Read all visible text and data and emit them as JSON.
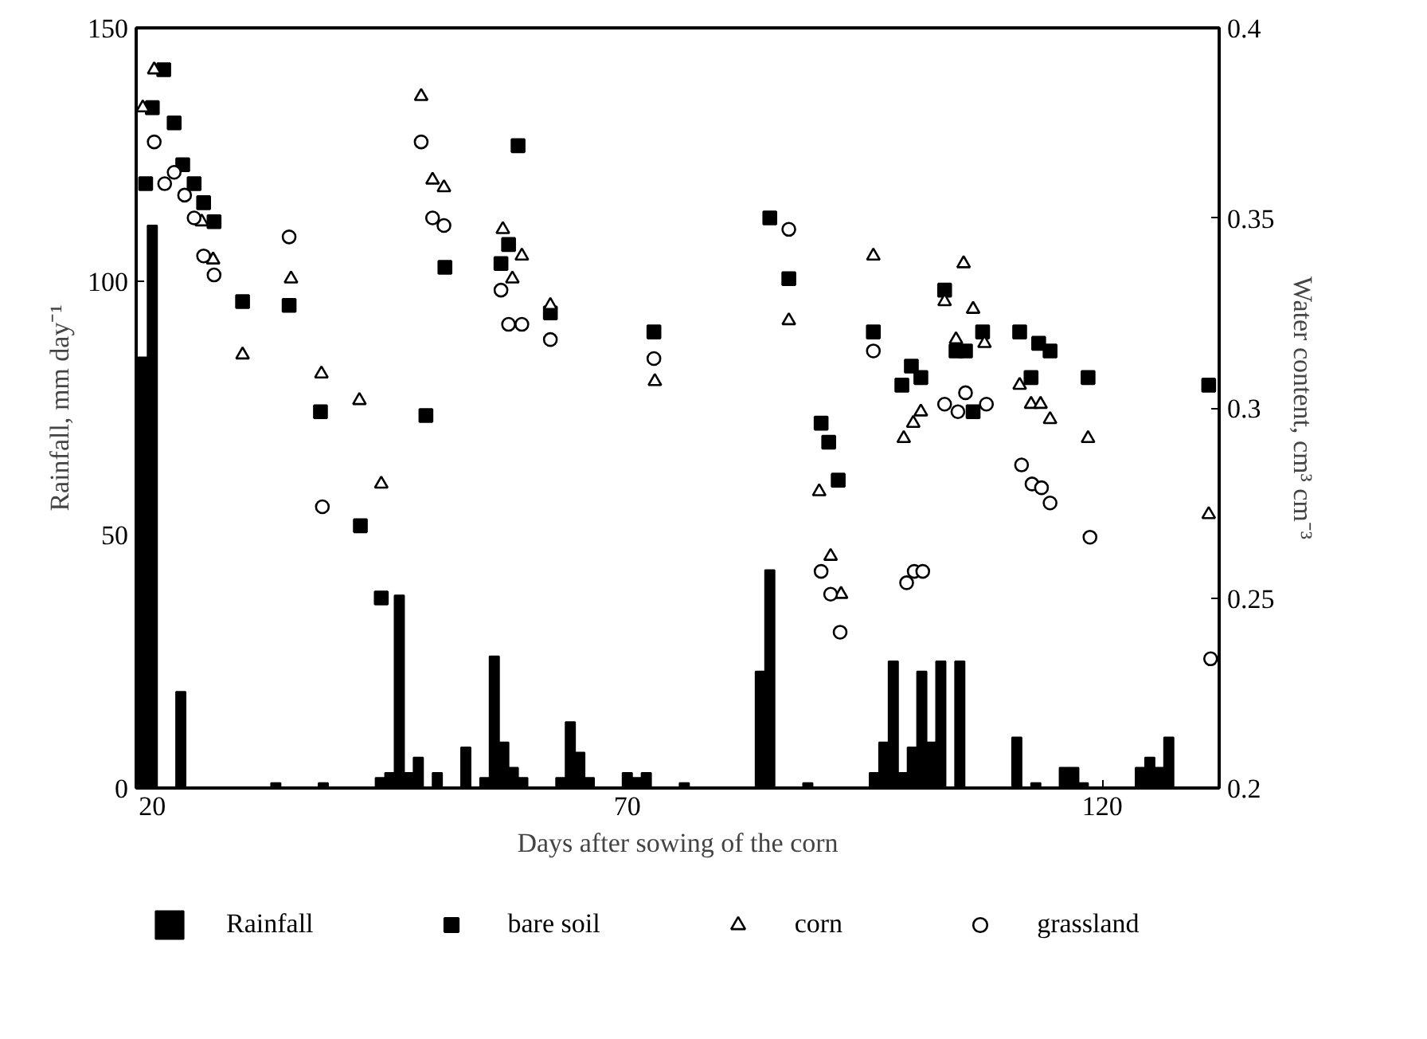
{
  "chart_data": {
    "type": "scatter",
    "xlabel": "Days after sowing of the corn",
    "ylabel": "Rainfall, mm day⁻¹",
    "y2label": "Water content, cm³ cm⁻³",
    "xlim": [
      18.3,
      132.3
    ],
    "xticks": [
      20,
      70,
      120
    ],
    "ylim": [
      0,
      150
    ],
    "yticks": [
      0,
      50,
      100,
      150
    ],
    "y2lim": [
      0.2,
      0.4
    ],
    "y2ticks": [
      0.2,
      0.25,
      0.3,
      0.35,
      0.4
    ],
    "legend": "bottom",
    "series": [
      {
        "name": "Rainfall",
        "type": "bar",
        "color": "#000000",
        "x": [
          19,
          20,
          23,
          33,
          38,
          44,
          45,
          46,
          47,
          48,
          50,
          53,
          55,
          56,
          57,
          58,
          59,
          63,
          64,
          65,
          66,
          70,
          71,
          72,
          76,
          84,
          85,
          89,
          96,
          97,
          98,
          99,
          100,
          101,
          102,
          103,
          105,
          111,
          113,
          116,
          117,
          118,
          124,
          125,
          126,
          127
        ],
        "values": [
          85,
          111,
          19,
          1,
          1,
          2,
          3,
          38,
          3,
          6,
          3,
          8,
          2,
          26,
          9,
          4,
          2,
          2,
          13,
          7,
          2,
          3,
          2,
          3,
          1,
          23,
          43,
          1,
          3,
          9,
          25,
          3,
          8,
          23,
          9,
          25,
          25,
          10,
          1,
          4,
          4,
          1,
          4,
          6,
          4,
          10
        ]
      },
      {
        "name": "bare soil",
        "axis": "y2",
        "marker": "square",
        "color": "#000000",
        "x": [
          19.3,
          20.0,
          21.2,
          22.3,
          23.2,
          24.4,
          25.4,
          26.5,
          29.5,
          34.4,
          37.7,
          41.9,
          44.1,
          48.8,
          50.8,
          56.7,
          57.5,
          58.5,
          61.9,
          72.8,
          85.0,
          87.0,
          90.4,
          91.2,
          92.2,
          95.9,
          98.9,
          99.9,
          100.9,
          103.4,
          104.6,
          105.6,
          106.4,
          107.4,
          111.3,
          112.5,
          113.3,
          114.5,
          118.5,
          131.2
        ],
        "values": [
          0.359,
          0.379,
          0.389,
          0.375,
          0.364,
          0.359,
          0.354,
          0.349,
          0.328,
          0.327,
          0.299,
          0.269,
          0.25,
          0.298,
          0.337,
          0.338,
          0.343,
          0.369,
          0.325,
          0.32,
          0.35,
          0.334,
          0.296,
          0.291,
          0.281,
          0.32,
          0.306,
          0.311,
          0.308,
          0.331,
          0.315,
          0.315,
          0.299,
          0.32,
          0.32,
          0.308,
          0.317,
          0.315,
          0.308,
          0.306
        ]
      },
      {
        "name": "corn",
        "axis": "y2",
        "marker": "triangle",
        "color": "#000000",
        "x": [
          19.0,
          20.2,
          25.2,
          26.4,
          29.5,
          34.6,
          37.8,
          41.8,
          44.1,
          48.3,
          49.5,
          50.7,
          56.9,
          57.9,
          58.9,
          61.9,
          72.9,
          87.0,
          90.2,
          91.4,
          92.5,
          95.9,
          99.1,
          100.1,
          100.9,
          103.4,
          104.6,
          105.4,
          106.4,
          107.6,
          111.3,
          112.5,
          113.5,
          114.5,
          118.5,
          131.2
        ],
        "values": [
          0.379,
          0.389,
          0.349,
          0.339,
          0.314,
          0.334,
          0.309,
          0.302,
          0.28,
          0.382,
          0.36,
          0.358,
          0.347,
          0.334,
          0.34,
          0.327,
          0.307,
          0.323,
          0.278,
          0.261,
          0.251,
          0.34,
          0.292,
          0.296,
          0.299,
          0.328,
          0.318,
          0.338,
          0.326,
          0.317,
          0.306,
          0.301,
          0.301,
          0.297,
          0.292,
          0.272
        ]
      },
      {
        "name": "grassland",
        "axis": "y2",
        "marker": "circle",
        "color": "#000000",
        "x": [
          20.2,
          21.3,
          22.3,
          23.4,
          24.4,
          25.4,
          26.5,
          34.4,
          37.9,
          48.3,
          49.5,
          50.7,
          56.7,
          57.5,
          58.9,
          61.9,
          72.8,
          87.0,
          90.4,
          91.4,
          92.4,
          95.9,
          99.4,
          100.2,
          101.1,
          103.4,
          104.8,
          105.6,
          107.8,
          111.5,
          112.6,
          113.6,
          114.5,
          118.7,
          131.4
        ],
        "values": [
          0.37,
          0.359,
          0.362,
          0.356,
          0.35,
          0.34,
          0.335,
          0.345,
          0.274,
          0.37,
          0.35,
          0.348,
          0.331,
          0.322,
          0.322,
          0.318,
          0.313,
          0.347,
          0.257,
          0.251,
          0.241,
          0.315,
          0.254,
          0.257,
          0.257,
          0.301,
          0.299,
          0.304,
          0.301,
          0.285,
          0.28,
          0.279,
          0.275,
          0.266,
          0.234
        ]
      }
    ]
  }
}
